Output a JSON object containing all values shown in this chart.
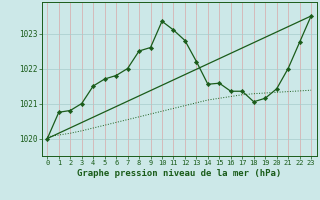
{
  "xlabel": "Graphe pression niveau de la mer (hPa)",
  "bg_color": "#cce8e8",
  "line_color": "#1a5c1a",
  "marker_color": "#1a5c1a",
  "ylim": [
    1019.5,
    1023.9
  ],
  "xlim": [
    -0.5,
    23.5
  ],
  "yticks": [
    1020,
    1021,
    1022,
    1023
  ],
  "xticks": [
    0,
    1,
    2,
    3,
    4,
    5,
    6,
    7,
    8,
    9,
    10,
    11,
    12,
    13,
    14,
    15,
    16,
    17,
    18,
    19,
    20,
    21,
    22,
    23
  ],
  "series1_x": [
    0,
    1,
    2,
    3,
    4,
    5,
    6,
    7,
    8,
    9,
    10,
    11,
    12,
    13,
    14,
    15,
    16,
    17,
    18,
    19,
    20,
    21,
    22,
    23
  ],
  "series1_y": [
    1020.0,
    1020.75,
    1020.8,
    1021.0,
    1021.5,
    1021.7,
    1021.8,
    1022.0,
    1022.5,
    1022.6,
    1023.35,
    1023.1,
    1022.8,
    1022.2,
    1021.55,
    1021.58,
    1021.35,
    1021.35,
    1021.05,
    1021.15,
    1021.42,
    1022.0,
    1022.75,
    1023.5
  ],
  "series2_x": [
    0,
    23
  ],
  "series2_y": [
    1020.0,
    1023.5
  ],
  "series3_x": [
    0,
    1,
    2,
    3,
    4,
    5,
    6,
    7,
    8,
    9,
    10,
    11,
    12,
    13,
    14,
    15,
    16,
    17,
    18,
    19,
    20,
    21,
    22,
    23
  ],
  "series3_y": [
    1020.05,
    1020.1,
    1020.15,
    1020.22,
    1020.3,
    1020.38,
    1020.46,
    1020.54,
    1020.62,
    1020.7,
    1020.78,
    1020.86,
    1020.94,
    1021.02,
    1021.1,
    1021.15,
    1021.2,
    1021.25,
    1021.28,
    1021.3,
    1021.32,
    1021.34,
    1021.36,
    1021.38
  ],
  "xlabel_fontsize": 6.5,
  "tick_fontsize": 5.5,
  "label_color": "#1a5c1a",
  "vgrid_color": "#d8a8a8",
  "hgrid_color": "#a8cccc"
}
